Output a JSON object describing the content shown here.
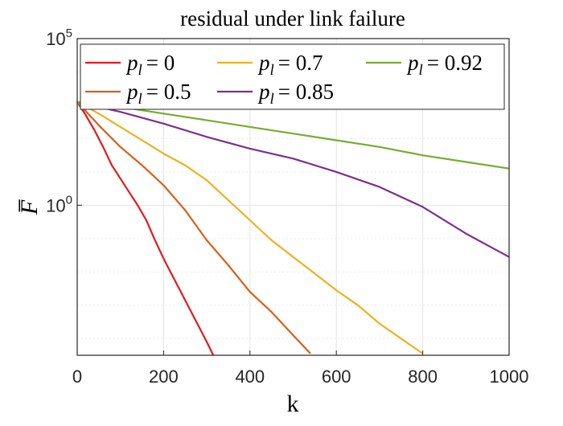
{
  "chart_data": {
    "type": "line",
    "title": "residual under link failure",
    "xlabel": "k",
    "ylabel": "F̅",
    "xlim": [
      0,
      1000
    ],
    "ylim": [
      -4.5,
      5
    ],
    "yscale": "log",
    "grid": true,
    "legend_position": "top",
    "x_ticks": [
      0,
      200,
      400,
      600,
      800,
      1000
    ],
    "x_tick_labels": [
      "0",
      "200",
      "400",
      "600",
      "800",
      "1000"
    ],
    "y_ticks": [
      0,
      5
    ],
    "y_tick_labels": [
      {
        "base": "10",
        "exp": "0"
      },
      {
        "base": "10",
        "exp": "5"
      }
    ],
    "series": [
      {
        "name": "p_l = 0",
        "legend_var": "p",
        "legend_sub": "l",
        "legend_value": "= 0",
        "color": "#e41a1c",
        "x": [
          0,
          20,
          40,
          60,
          80,
          100,
          120,
          140,
          160,
          180,
          200,
          220,
          240,
          260,
          280,
          300,
          315
        ],
        "log10_y": [
          3.1,
          2.7,
          2.25,
          1.75,
          1.2,
          0.8,
          0.4,
          0.0,
          -0.45,
          -1.05,
          -1.6,
          -2.1,
          -2.6,
          -3.1,
          -3.6,
          -4.1,
          -4.5
        ]
      },
      {
        "name": "p_l = 0.5",
        "legend_var": "p",
        "legend_sub": "l",
        "legend_value": "= 0.5",
        "color": "#d95f1b",
        "x": [
          0,
          50,
          100,
          150,
          200,
          250,
          300,
          350,
          400,
          450,
          500,
          540
        ],
        "log10_y": [
          3.1,
          2.4,
          1.75,
          1.2,
          0.6,
          -0.15,
          -1.05,
          -1.8,
          -2.6,
          -3.2,
          -3.9,
          -4.45
        ]
      },
      {
        "name": "p_l = 0.7",
        "legend_var": "p",
        "legend_sub": "l",
        "legend_value": "= 0.7",
        "color": "#edb120",
        "x": [
          0,
          50,
          100,
          150,
          200,
          250,
          300,
          350,
          400,
          450,
          500,
          550,
          600,
          650,
          700,
          750,
          800
        ],
        "log10_y": [
          3.1,
          2.75,
          2.35,
          1.95,
          1.55,
          1.2,
          0.75,
          0.15,
          -0.45,
          -1.05,
          -1.55,
          -2.05,
          -2.55,
          -3.0,
          -3.55,
          -4.0,
          -4.45
        ]
      },
      {
        "name": "p_l = 0.85",
        "legend_var": "p",
        "legend_sub": "l",
        "legend_value": "= 0.85",
        "color": "#7e2f8e",
        "x": [
          0,
          100,
          200,
          300,
          400,
          500,
          600,
          700,
          800,
          900,
          1000
        ],
        "log10_y": [
          3.1,
          2.8,
          2.45,
          2.05,
          1.7,
          1.4,
          1.0,
          0.55,
          -0.05,
          -0.85,
          -1.55
        ]
      },
      {
        "name": "p_l = 0.92",
        "legend_var": "p",
        "legend_sub": "l",
        "legend_value": "= 0.92",
        "color": "#77ac30",
        "x": [
          0,
          100,
          200,
          300,
          400,
          500,
          600,
          700,
          800,
          900,
          1000
        ],
        "log10_y": [
          3.1,
          2.95,
          2.75,
          2.55,
          2.35,
          2.15,
          1.95,
          1.75,
          1.5,
          1.3,
          1.1
        ]
      }
    ]
  }
}
